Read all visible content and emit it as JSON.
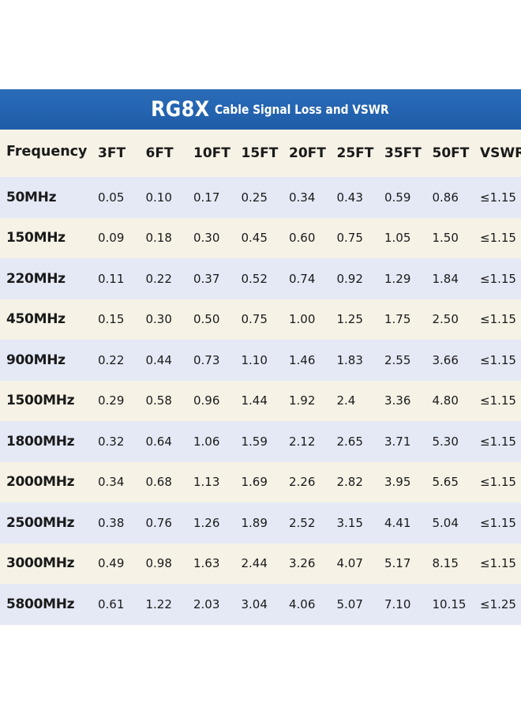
{
  "title": {
    "model": "RG8X",
    "subtitle": "Cable Signal Loss and VSWR"
  },
  "table": {
    "columns": [
      "Frequency",
      "3FT",
      "6FT",
      "10FT",
      "15FT",
      "20FT",
      "25FT",
      "35FT",
      "50FT",
      "VSWR"
    ],
    "rows": [
      [
        "50MHz",
        "0.05",
        "0.10",
        "0.17",
        "0.25",
        "0.34",
        "0.43",
        "0.59",
        "0.86",
        "≤1.15"
      ],
      [
        "150MHz",
        "0.09",
        "0.18",
        "0.30",
        "0.45",
        "0.60",
        "0.75",
        "1.05",
        "1.50",
        "≤1.15"
      ],
      [
        "220MHz",
        "0.11",
        "0.22",
        "0.37",
        "0.52",
        "0.74",
        "0.92",
        "1.29",
        "1.84",
        "≤1.15"
      ],
      [
        "450MHz",
        "0.15",
        "0.30",
        "0.50",
        "0.75",
        "1.00",
        "1.25",
        "1.75",
        "2.50",
        "≤1.15"
      ],
      [
        "900MHz",
        "0.22",
        "0.44",
        "0.73",
        "1.10",
        "1.46",
        "1.83",
        "2.55",
        "3.66",
        "≤1.15"
      ],
      [
        "1500MHz",
        "0.29",
        "0.58",
        "0.96",
        "1.44",
        "1.92",
        "2.4",
        "3.36",
        "4.80",
        "≤1.15"
      ],
      [
        "1800MHz",
        "0.32",
        "0.64",
        "1.06",
        "1.59",
        "2.12",
        "2.65",
        "3.71",
        "5.30",
        "≤1.15"
      ],
      [
        "2000MHz",
        "0.34",
        "0.68",
        "1.13",
        "1.69",
        "2.26",
        "2.82",
        "3.95",
        "5.65",
        "≤1.15"
      ],
      [
        "2500MHz",
        "0.38",
        "0.76",
        "1.26",
        "1.89",
        "2.52",
        "3.15",
        "4.41",
        "5.04",
        "≤1.15"
      ],
      [
        "3000MHz",
        "0.49",
        "0.98",
        "1.63",
        "2.44",
        "3.26",
        "4.07",
        "5.17",
        "8.15",
        "≤1.15"
      ],
      [
        "5800MHz",
        "0.61",
        "1.22",
        "2.03",
        "3.04",
        "4.06",
        "5.07",
        "7.10",
        "10.15",
        "≤1.25"
      ]
    ]
  },
  "colors": {
    "banner": "#1f5ca8",
    "banner_text": "#ffffff",
    "row_blue": "#e4e9f5",
    "row_cream": "#f6f2e6",
    "text": "#1a1a1a"
  }
}
